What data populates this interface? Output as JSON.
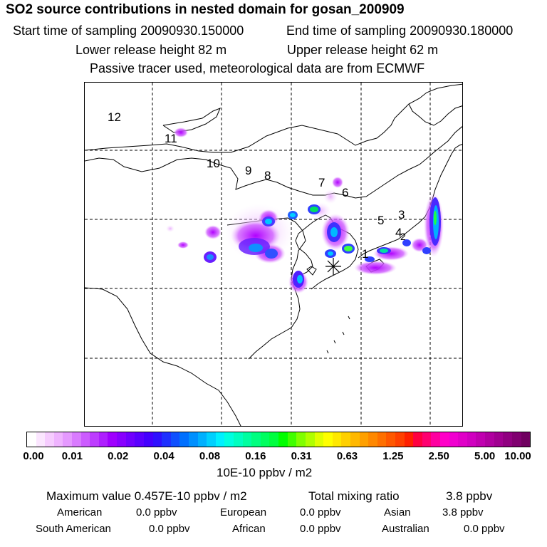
{
  "header": {
    "title": "SO2 source contributions in nested domain for gosan_200909",
    "start": "Start time of sampling 20090930.150000",
    "end": "End time of sampling 20090930.180000",
    "lower": "Lower release height   82 m",
    "upper": "Upper release height   62 m",
    "note": "Passive tracer used, meteorological data are from ECMWF"
  },
  "map": {
    "receptor_marker": "asterisk-marker",
    "region_labels": [
      "12",
      "11",
      "10",
      "9",
      "8",
      "7",
      "6",
      "5",
      "3",
      "4",
      "2",
      "1"
    ]
  },
  "colorbar": {
    "colors": [
      "#ffffff",
      "#fbe6ff",
      "#f6ccff",
      "#efb3ff",
      "#e599ff",
      "#d97bff",
      "#cc5cff",
      "#bd3dff",
      "#ae1fff",
      "#9f00ff",
      "#8800ff",
      "#7000ff",
      "#5a00ff",
      "#4400ff",
      "#2f10ff",
      "#1f30ff",
      "#1050ff",
      "#0070ff",
      "#0090ff",
      "#00b0ff",
      "#00d0ff",
      "#00f0ff",
      "#00ffe0",
      "#00ffc0",
      "#00ffa0",
      "#00ff80",
      "#00ff60",
      "#00ff40",
      "#00ff00",
      "#40ff00",
      "#80ff00",
      "#b0ff00",
      "#e0ff00",
      "#ffff00",
      "#ffe800",
      "#ffd000",
      "#ffb800",
      "#ffa000",
      "#ff8800",
      "#ff7000",
      "#ff5800",
      "#ff4000",
      "#ff2000",
      "#ff0040",
      "#ff0070",
      "#ff00a0",
      "#ff00c8",
      "#f000d0",
      "#e000c8",
      "#d000c0",
      "#c000b0",
      "#b000a0",
      "#a00090",
      "#900080",
      "#800070",
      "#700060"
    ],
    "tick_labels": [
      "0.00",
      "0.01",
      "0.02",
      "0.04",
      "0.08",
      "0.16",
      "0.31",
      "0.63",
      "1.25",
      "2.50",
      "5.00",
      "10.00"
    ],
    "units": "10E-10 ppbv / m2"
  },
  "summary": {
    "max_value": "Maximum value  0.457E-10 ppbv / m2",
    "total_label": "Total mixing ratio",
    "total_value": "3.8 ppbv",
    "regions": [
      {
        "label": "American",
        "value": "0.0 ppbv"
      },
      {
        "label": "European",
        "value": "0.0 ppbv"
      },
      {
        "label": "Asian",
        "value": "3.8 ppbv"
      },
      {
        "label": "South American",
        "value": "0.0 ppbv"
      },
      {
        "label": "African",
        "value": "0.0 ppbv"
      },
      {
        "label": "Australian",
        "value": "0.0 ppbv"
      }
    ]
  }
}
